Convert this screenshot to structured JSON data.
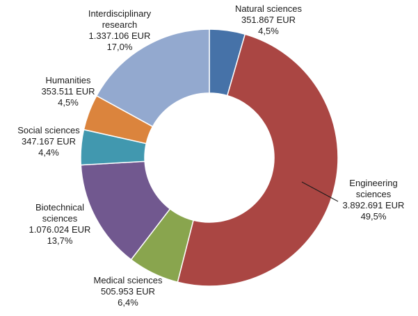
{
  "chart_data": {
    "type": "pie",
    "variant": "donut",
    "title": "",
    "slices": [
      {
        "name": "Natural sciences",
        "label_lines": [
          "Natural sciences"
        ],
        "value_label": "351.867 EUR",
        "value": 351867,
        "percent_label": "4,5%",
        "percent": 4.5,
        "color": "#4672a8"
      },
      {
        "name": "Engineering sciences",
        "label_lines": [
          "Engineering",
          "sciences"
        ],
        "value_label": "3.892.691 EUR",
        "value": 3892691,
        "percent_label": "49,5%",
        "percent": 49.5,
        "color": "#aa4643"
      },
      {
        "name": "Medical sciences",
        "label_lines": [
          "Medical sciences"
        ],
        "value_label": "505.953 EUR",
        "value": 505953,
        "percent_label": "6,4%",
        "percent": 6.4,
        "color": "#89a54e"
      },
      {
        "name": "Biotechnical sciences",
        "label_lines": [
          "Biotechnical",
          "sciences"
        ],
        "value_label": "1.076.024 EUR",
        "value": 1076024,
        "percent_label": "13,7%",
        "percent": 13.7,
        "color": "#71588f"
      },
      {
        "name": "Social sciences",
        "label_lines": [
          "Social sciences"
        ],
        "value_label": "347.167 EUR",
        "value": 347167,
        "percent_label": "4,4%",
        "percent": 4.4,
        "color": "#4198af"
      },
      {
        "name": "Humanities",
        "label_lines": [
          "Humanities"
        ],
        "value_label": "353.511 EUR",
        "value": 353511,
        "percent_label": "4,5%",
        "percent": 4.5,
        "color": "#db843d"
      },
      {
        "name": "Interdisciplinary research",
        "label_lines": [
          "Interdisciplinary",
          "research"
        ],
        "value_label": "1.337.106 EUR",
        "value": 1337106,
        "percent_label": "17,0%",
        "percent": 17.0,
        "color": "#93a9cf"
      }
    ],
    "start": "top",
    "direction": "clockwise",
    "legend": "none"
  }
}
